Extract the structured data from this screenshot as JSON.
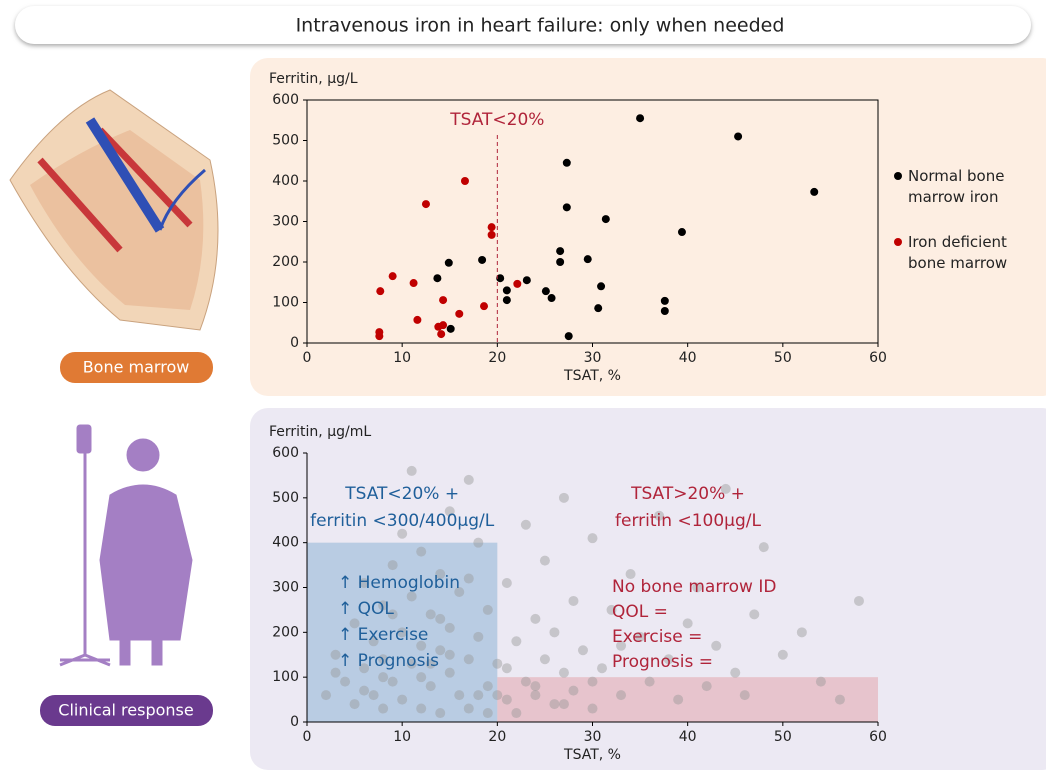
{
  "title": "Intravenous iron in heart failure: only when needed",
  "panels": [
    {
      "label": "Bone marrow"
    },
    {
      "label": "Clinical response"
    }
  ],
  "chart_data": [
    {
      "type": "scatter",
      "y_label": "Ferritin, µg/L",
      "x_label": "TSAT, %",
      "xlim": [
        0,
        60
      ],
      "xticks": [
        0,
        10,
        20,
        30,
        40,
        50,
        60
      ],
      "ylim": [
        0,
        600
      ],
      "yticks": [
        0,
        100,
        200,
        300,
        400,
        500,
        600
      ],
      "threshold": {
        "x": 20,
        "label": "TSAT<20%",
        "color": "#b0243a"
      },
      "legend": "right",
      "series": [
        {
          "name": "Normal bone marrow iron",
          "color": "#000000",
          "x": [
            35.0,
            45.3,
            53.3,
            27.3,
            27.3,
            31.4,
            39.4,
            26.6,
            26.6,
            29.5,
            18.4,
            14.9,
            13.7,
            20.3,
            23.1,
            21.0,
            25.1,
            30.9,
            21.0,
            25.7,
            37.6,
            37.6,
            30.6,
            15.1,
            27.5
          ],
          "values": [
            555,
            510,
            373,
            445,
            335,
            306,
            274,
            227,
            200,
            207,
            205,
            198,
            160,
            160,
            155,
            130,
            128,
            140,
            106,
            111,
            104,
            79,
            86,
            35,
            17
          ]
        },
        {
          "name": "Iron deficient bone marrow",
          "color": "#c00000",
          "x": [
            16.6,
            12.5,
            19.4,
            19.4,
            9.0,
            7.7,
            11.2,
            22.1,
            14.3,
            18.6,
            16.0,
            11.6,
            14.3,
            13.8,
            14.1,
            7.6,
            7.6
          ],
          "values": [
            400,
            343,
            286,
            267,
            165,
            128,
            148,
            146,
            106,
            91,
            72,
            57,
            44,
            40,
            22,
            27,
            17
          ]
        }
      ]
    },
    {
      "type": "scatter",
      "y_label": "Ferritin, µg/mL",
      "x_label": "TSAT, %",
      "xlim": [
        0,
        60
      ],
      "xticks": [
        0,
        10,
        20,
        30,
        40,
        50,
        60
      ],
      "ylim": [
        0,
        600
      ],
      "yticks": [
        0,
        100,
        200,
        300,
        400,
        500,
        600
      ],
      "series": [
        {
          "color": "#9a9a9a",
          "x": [
            2,
            3,
            4,
            5,
            5,
            6,
            6,
            7,
            7,
            8,
            8,
            8,
            9,
            9,
            10,
            10,
            10,
            11,
            11,
            12,
            12,
            12,
            13,
            13,
            14,
            14,
            14,
            15,
            15,
            15,
            16,
            16,
            17,
            17,
            17,
            18,
            18,
            19,
            19,
            19,
            20,
            21,
            21,
            22,
            22,
            23,
            23,
            24,
            24,
            25,
            25,
            26,
            26,
            27,
            27,
            28,
            28,
            29,
            30,
            30,
            31,
            32,
            33,
            34,
            35,
            36,
            37,
            38,
            39,
            40,
            41,
            42,
            43,
            44,
            45,
            46,
            47,
            48,
            50,
            52,
            54,
            56,
            58,
            3,
            6,
            9,
            12,
            15,
            18,
            21,
            24,
            27,
            30,
            33,
            11,
            14,
            17,
            20,
            8,
            13
          ],
          "values": [
            60,
            150,
            90,
            220,
            40,
            310,
            120,
            180,
            60,
            260,
            30,
            140,
            350,
            90,
            200,
            50,
            420,
            280,
            130,
            170,
            30,
            380,
            240,
            80,
            160,
            330,
            20,
            110,
            470,
            210,
            60,
            290,
            140,
            540,
            30,
            190,
            400,
            80,
            250,
            20,
            130,
            50,
            310,
            180,
            20,
            90,
            440,
            230,
            60,
            140,
            360,
            40,
            200,
            110,
            500,
            70,
            270,
            160,
            30,
            410,
            120,
            250,
            60,
            330,
            190,
            90,
            460,
            140,
            50,
            220,
            300,
            80,
            170,
            520,
            110,
            60,
            240,
            390,
            150,
            200,
            90,
            50,
            270,
            110,
            70,
            240,
            100,
            150,
            60,
            120,
            80,
            40,
            90,
            170,
            560,
            230,
            320,
            60,
            100,
            130
          ]
        }
      ],
      "regions": [
        {
          "xlim": [
            0,
            20
          ],
          "ylim": [
            0,
            400
          ],
          "color": "#8fb4d6",
          "text_color": "#1f5f9a",
          "heading": [
            "TSAT<20% +",
            "ferritin <300/400µg/L"
          ],
          "items": [
            "↑ Hemoglobin",
            "↑ QOL",
            "↑ Exercise",
            "↑ Prognosis"
          ]
        },
        {
          "xlim": [
            20,
            60
          ],
          "ylim": [
            0,
            100
          ],
          "color": "#e3a5ad",
          "text_color": "#b0243a",
          "heading": [
            "TSAT>20% +",
            "ferritin <100µg/L"
          ],
          "items": [
            "No bone marrow ID",
            "QOL =",
            "Exercise =",
            "Prognosis ="
          ]
        }
      ]
    }
  ]
}
